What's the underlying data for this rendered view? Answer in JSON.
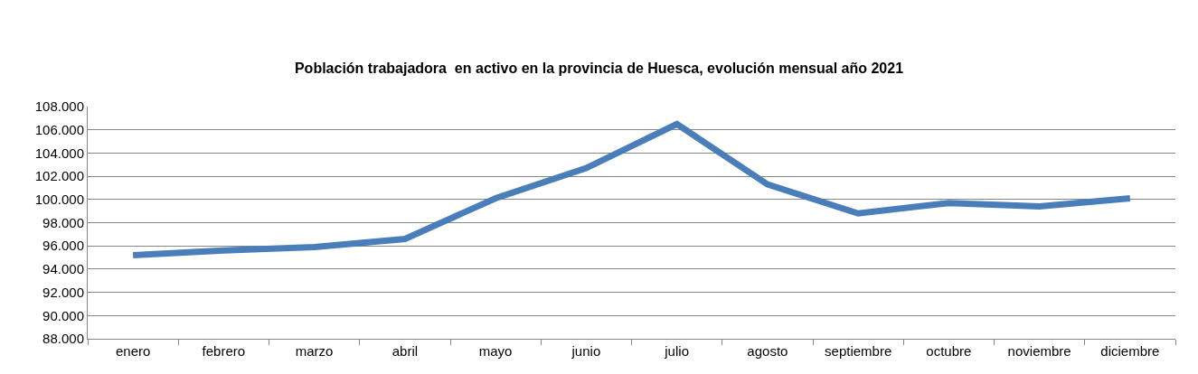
{
  "chart_data": {
    "type": "line",
    "title": "Población trabajadora  en activo en la provincia de Huesca, evolución mensual año 2021",
    "categories": [
      "enero",
      "febrero",
      "marzo",
      "abril",
      "mayo",
      "junio",
      "julio",
      "agosto",
      "septiembre",
      "octubre",
      "noviembre",
      "diciembre"
    ],
    "series": [
      {
        "color": "#4a7ebb",
        "values": [
          95200,
          95600,
          95900,
          96600,
          100100,
          102700,
          106500,
          101300,
          98800,
          99700,
          99400,
          100100
        ]
      }
    ],
    "ylim": [
      88000,
      108000
    ],
    "yticks": [
      {
        "value": 88000,
        "label": "88.000"
      },
      {
        "value": 90000,
        "label": "90.000"
      },
      {
        "value": 92000,
        "label": "92.000"
      },
      {
        "value": 94000,
        "label": "94.000"
      },
      {
        "value": 96000,
        "label": "96.000"
      },
      {
        "value": 98000,
        "label": "98.000"
      },
      {
        "value": 100000,
        "label": "100.000"
      },
      {
        "value": 102000,
        "label": "102.000"
      },
      {
        "value": 104000,
        "label": "104.000"
      },
      {
        "value": 106000,
        "label": "106.000"
      },
      {
        "value": 108000,
        "label": "108.000"
      }
    ],
    "grid": "y",
    "marker": "none",
    "line_style": "solid"
  }
}
